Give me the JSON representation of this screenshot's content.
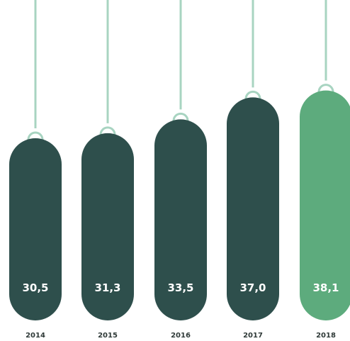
{
  "chart_data": {
    "type": "bar",
    "categories": [
      "2014",
      "2015",
      "2016",
      "2017",
      "2018"
    ],
    "values": [
      30.5,
      31.3,
      33.5,
      37.0,
      38.1
    ],
    "value_labels": [
      "30,5",
      "31,3",
      "33,5",
      "37,0",
      "38,1"
    ],
    "title": "",
    "xlabel": "",
    "ylabel": "",
    "grid": false,
    "legend": "none",
    "colors": {
      "bar": "#2e4f4c",
      "highlight_bar": "#5dab7d",
      "hanger_line": "#a8d4c1",
      "value_text": "#ffffff",
      "year_text": "#2f3a38"
    }
  }
}
